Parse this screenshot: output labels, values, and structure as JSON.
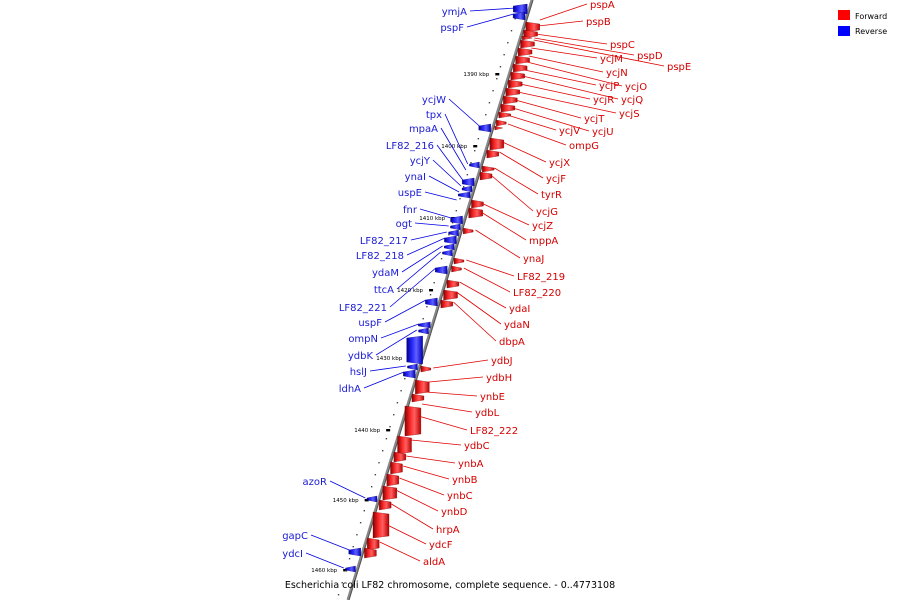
{
  "legend": [
    {
      "label": "Forward",
      "color": "#ff0000"
    },
    {
      "label": "Reverse",
      "color": "#0000ff"
    }
  ],
  "caption": "Escherichia coli LF82 chromosome, complete sequence. - 0..4773108",
  "ticks": [
    "1390 kbp",
    "1400 kbp",
    "1410 kbp",
    "1420 kbp",
    "1430 kbp",
    "1440 kbp",
    "1450 kbp",
    "1460 kbp"
  ],
  "forward_genes": [
    "pspA",
    "pspB",
    "pspC",
    "pspD",
    "pspE",
    "ycjM",
    "ycjN",
    "ycjO",
    "ycjP",
    "ycjQ",
    "ycjR",
    "ycjS",
    "ycjT",
    "ycjU",
    "ycjV",
    "ompG",
    "ycjX",
    "ycjF",
    "tyrR",
    "ycjG",
    "ycjZ",
    "mppA",
    "ynaJ",
    "LF82_219",
    "LF82_220",
    "ydaI",
    "ydaN",
    "dbpA",
    "ydbJ",
    "ydbH",
    "ynbE",
    "ydbL",
    "LF82_222",
    "ydbC",
    "ynbA",
    "ynbB",
    "ynbC",
    "ynbD",
    "hrpA",
    "ydcF",
    "aldA"
  ],
  "reverse_genes": [
    "ymjA",
    "pspF",
    "ycjW",
    "tpx",
    "mpaA",
    "LF82_216",
    "ycjY",
    "ynaI",
    "uspE",
    "fnr",
    "ogt",
    "LF82_217",
    "LF82_218",
    "ydaM",
    "ttcA",
    "LF82_221",
    "uspF",
    "ompN",
    "ydbK",
    "hslJ",
    "ldhA",
    "azoR",
    "gapC",
    "ydcI"
  ]
}
